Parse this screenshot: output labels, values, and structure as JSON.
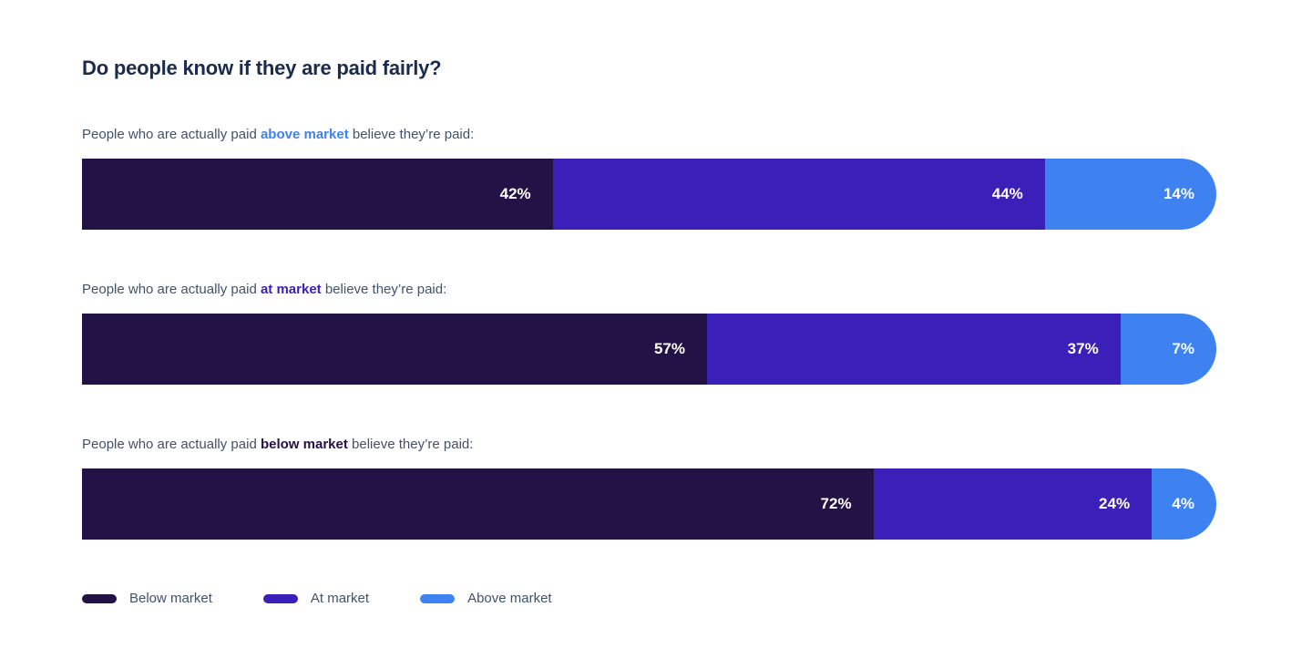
{
  "page": {
    "title": "Do people know if they are paid fairly?"
  },
  "chart_data": {
    "type": "bar",
    "variant": "horizontal-stacked",
    "unit": "%",
    "title": "Do people know if they are paid fairly?",
    "categories": [
      "Below market",
      "At market",
      "Above market"
    ],
    "colors": {
      "Below market": "#231245",
      "At market": "#3a1fb8",
      "Above market": "#3e82f1"
    },
    "legend_position": "bottom-left",
    "grid": false,
    "rows": [
      {
        "label_prefix": "People who are actually paid ",
        "label_highlight": "above market",
        "label_suffix": " believe they’re paid:",
        "highlight_color": "#3e82f1",
        "actual_pay_group": "above market",
        "segments": [
          {
            "category": "Below market",
            "value": 42,
            "display": "42%"
          },
          {
            "category": "At market",
            "value": 44,
            "display": "44%"
          },
          {
            "category": "Above market",
            "value": 14,
            "display": "14%"
          }
        ]
      },
      {
        "label_prefix": "People who are actually paid ",
        "label_highlight": "at market",
        "label_suffix": " believe they’re paid:",
        "highlight_color": "#3a1fb8",
        "actual_pay_group": "at market",
        "segments": [
          {
            "category": "Below market",
            "value": 57,
            "display": "57%"
          },
          {
            "category": "At market",
            "value": 37,
            "display": "37%"
          },
          {
            "category": "Above market",
            "value": 7,
            "display": "7%"
          }
        ]
      },
      {
        "label_prefix": "People who are actually paid ",
        "label_highlight": "below market",
        "label_suffix": " believe they’re paid:",
        "highlight_color": "#231245",
        "actual_pay_group": "below market",
        "segments": [
          {
            "category": "Below market",
            "value": 72,
            "display": "72%"
          },
          {
            "category": "At market",
            "value": 24,
            "display": "24%"
          },
          {
            "category": "Above market",
            "value": 4,
            "display": "4%"
          }
        ]
      }
    ],
    "legend": [
      {
        "label": "Below market",
        "color": "#231245"
      },
      {
        "label": "At market",
        "color": "#3a1fb8"
      },
      {
        "label": "Above market",
        "color": "#3e82f1"
      }
    ]
  }
}
